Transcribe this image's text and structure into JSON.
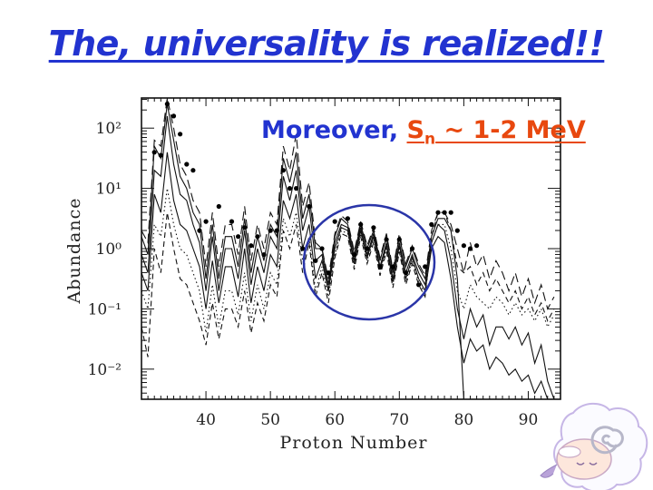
{
  "slide": {
    "title": "The, universality is realized!!",
    "note_prefix": "Moreover, ",
    "note_symbol": "S",
    "note_subscript": "n",
    "note_value": " ~ 1-2 MeV"
  },
  "colors": {
    "title": "#2233d0",
    "highlight": "#e8480f",
    "circle": "#2a35a8",
    "lines": "#111111"
  },
  "icons": {
    "mascot": "sheep-icon"
  },
  "chart_data": {
    "type": "line",
    "xlabel": "Proton Number",
    "ylabel": "Abundance",
    "xlim": [
      30,
      95
    ],
    "ylim": [
      -2.5,
      2.5
    ],
    "y_scale": "log",
    "x_ticks": [
      40,
      50,
      60,
      70,
      80,
      90
    ],
    "x_tick_labels": [
      "40",
      "50",
      "60",
      "70",
      "80",
      "90"
    ],
    "y_ticks": [
      -2,
      -1,
      0,
      1,
      2
    ],
    "y_tick_labels": [
      "10⁻²",
      "10⁻¹",
      "10⁰",
      "10¹",
      "10²"
    ],
    "annotation": "circle around Z = 56-76",
    "solar_points": {
      "x": [
        32,
        33,
        34,
        35,
        36,
        37,
        38,
        39,
        40,
        42,
        44,
        45,
        46,
        47,
        48,
        49,
        50,
        51,
        52,
        53,
        54,
        55,
        56,
        57,
        58,
        59,
        60,
        62,
        63,
        64,
        65,
        66,
        67,
        68,
        69,
        70,
        71,
        72,
        73,
        74,
        75,
        76,
        77,
        78,
        79,
        80,
        81,
        82
      ],
      "y": [
        1.6,
        1.55,
        2.4,
        2.2,
        1.9,
        1.4,
        1.3,
        0.3,
        0.45,
        0.7,
        0.45,
        0.2,
        0.35,
        0.05,
        0.2,
        -0.1,
        0.3,
        0.3,
        1.3,
        1.0,
        1.0,
        0.0,
        0.7,
        -0.2,
        0.0,
        -0.4,
        0.45,
        0.5,
        -0.1,
        0.4,
        0.0,
        0.35,
        -0.3,
        0.15,
        -0.3,
        0.15,
        -0.4,
        0.0,
        -0.6,
        -0.3,
        0.4,
        0.6,
        0.6,
        0.6,
        0.3,
        0.05,
        0.0,
        0.05
      ]
    },
    "series": [
      {
        "style": "solid",
        "x": [
          30,
          31,
          32,
          33,
          34,
          35,
          36,
          37,
          38,
          39,
          40,
          41,
          42,
          43,
          44,
          45,
          46,
          47,
          48,
          49,
          50,
          51,
          52,
          53,
          54,
          55,
          56,
          57,
          58,
          59,
          60,
          61,
          62,
          63,
          64,
          65,
          66,
          67,
          68,
          69,
          70,
          71,
          72,
          73,
          74,
          75,
          76,
          77,
          78,
          79,
          80,
          81,
          82,
          83,
          84,
          85,
          86,
          87,
          88,
          89,
          90,
          91,
          92,
          93,
          94
        ],
        "y": [
          0.2,
          -0.1,
          1.7,
          1.5,
          2.4,
          1.8,
          1.2,
          1.0,
          0.6,
          0.4,
          -0.5,
          0.4,
          -0.5,
          0.2,
          0.2,
          -0.3,
          0.5,
          -0.4,
          0.2,
          -0.2,
          0.4,
          0.2,
          1.5,
          1.1,
          1.6,
          0.5,
          0.9,
          0.0,
          0.0,
          -0.6,
          0.2,
          0.5,
          0.4,
          -0.1,
          0.4,
          0.0,
          0.3,
          -0.2,
          0.2,
          -0.4,
          0.2,
          -0.3,
          0.0,
          -0.3,
          -0.5,
          0.2,
          0.5,
          0.5,
          0.3,
          -0.5,
          -2.5,
          -2.5,
          -2.5,
          -2.5,
          -2.5,
          -2.5,
          -2.5,
          -2.5,
          -2.5,
          -2.5,
          -2.5,
          -2.5,
          -2.5,
          -2.5,
          -2.5
        ]
      },
      {
        "style": "solid",
        "x": [
          30,
          31,
          32,
          33,
          34,
          35,
          36,
          37,
          38,
          39,
          40,
          41,
          42,
          43,
          44,
          45,
          46,
          47,
          48,
          49,
          50,
          51,
          52,
          53,
          54,
          55,
          56,
          57,
          58,
          59,
          60,
          61,
          62,
          63,
          64,
          65,
          66,
          67,
          68,
          69,
          70,
          71,
          72,
          73,
          74,
          75,
          76,
          77,
          78,
          79,
          80,
          81,
          82,
          83,
          84,
          85,
          86,
          87,
          88,
          89,
          90,
          91,
          92,
          93,
          94
        ],
        "y": [
          -0.1,
          -0.4,
          1.3,
          1.2,
          2.2,
          1.4,
          0.9,
          0.8,
          0.4,
          0.1,
          -0.7,
          0.2,
          -0.7,
          0.0,
          0.0,
          -0.5,
          0.3,
          -0.6,
          0.0,
          -0.4,
          0.2,
          0.0,
          1.2,
          0.8,
          1.3,
          0.3,
          0.7,
          -0.2,
          -0.1,
          -0.7,
          0.1,
          0.4,
          0.35,
          -0.2,
          0.35,
          -0.1,
          0.25,
          -0.3,
          0.1,
          -0.5,
          0.1,
          -0.4,
          -0.1,
          -0.4,
          -0.6,
          0.1,
          0.4,
          0.3,
          -0.2,
          -1.0,
          -1.5,
          -1.0,
          -1.3,
          -1.1,
          -1.6,
          -1.3,
          -1.3,
          -1.5,
          -1.3,
          -1.6,
          -1.4,
          -1.9,
          -1.6,
          -2.2,
          -2.5
        ]
      },
      {
        "style": "solid",
        "x": [
          30,
          31,
          32,
          33,
          34,
          35,
          36,
          37,
          38,
          39,
          40,
          41,
          42,
          43,
          44,
          45,
          46,
          47,
          48,
          49,
          50,
          51,
          52,
          53,
          54,
          55,
          56,
          57,
          58,
          59,
          60,
          61,
          62,
          63,
          64,
          65,
          66,
          67,
          68,
          69,
          70,
          71,
          72,
          73,
          74,
          75,
          76,
          77,
          78,
          79,
          80,
          81,
          82,
          83,
          84,
          85,
          86,
          87,
          88,
          89,
          90,
          91,
          92,
          93,
          94
        ],
        "y": [
          -0.4,
          -0.7,
          0.9,
          0.6,
          1.6,
          0.8,
          0.4,
          0.3,
          0.0,
          -0.3,
          -1.0,
          -0.2,
          -0.9,
          -0.3,
          -0.3,
          -0.8,
          0.0,
          -0.9,
          -0.3,
          -0.7,
          -0.1,
          -0.3,
          0.8,
          0.5,
          0.9,
          0.0,
          0.4,
          -0.5,
          -0.2,
          -0.7,
          0.0,
          0.35,
          0.3,
          -0.25,
          0.3,
          -0.15,
          0.2,
          -0.35,
          0.05,
          -0.55,
          0.05,
          -0.5,
          -0.15,
          -0.5,
          -0.7,
          0.0,
          0.2,
          0.1,
          -0.5,
          -1.3,
          -1.9,
          -1.5,
          -1.7,
          -1.6,
          -2.0,
          -1.8,
          -1.9,
          -2.1,
          -2.0,
          -2.2,
          -2.1,
          -2.4,
          -2.2,
          -2.5,
          -2.5
        ]
      },
      {
        "style": "dotted",
        "x": [
          30,
          31,
          32,
          33,
          34,
          35,
          36,
          37,
          38,
          39,
          40,
          41,
          42,
          43,
          44,
          45,
          46,
          47,
          48,
          49,
          50,
          51,
          52,
          53,
          54,
          55,
          56,
          57,
          58,
          59,
          60,
          61,
          62,
          63,
          64,
          65,
          66,
          67,
          68,
          69,
          70,
          71,
          72,
          73,
          74,
          75,
          76,
          77,
          78,
          79,
          80,
          81,
          82,
          83,
          84,
          85,
          86,
          87,
          88,
          89,
          90,
          91,
          92,
          93,
          94
        ],
        "y": [
          -0.7,
          -1.0,
          0.4,
          0.2,
          1.0,
          0.4,
          0.0,
          -0.1,
          -0.4,
          -0.7,
          -1.4,
          -0.6,
          -1.3,
          -0.7,
          -0.7,
          -1.1,
          -0.4,
          -1.2,
          -0.6,
          -1.0,
          -0.4,
          -0.6,
          0.5,
          0.2,
          0.6,
          -0.2,
          0.2,
          -0.7,
          -0.3,
          -0.8,
          -0.1,
          0.3,
          0.25,
          -0.3,
          0.25,
          -0.2,
          0.15,
          -0.4,
          0.0,
          -0.6,
          0.0,
          -0.55,
          -0.2,
          -0.55,
          -0.75,
          0.1,
          0.4,
          0.4,
          0.0,
          -0.7,
          -1.0,
          -0.6,
          -0.8,
          -0.9,
          -1.0,
          -0.8,
          -0.9,
          -1.1,
          -0.9,
          -1.1,
          -1.0,
          -1.2,
          -1.0,
          -1.3,
          -1.1
        ]
      },
      {
        "style": "dashed",
        "x": [
          30,
          31,
          32,
          33,
          34,
          35,
          36,
          37,
          38,
          39,
          40,
          41,
          42,
          43,
          44,
          45,
          46,
          47,
          48,
          49,
          50,
          51,
          52,
          53,
          54,
          55,
          56,
          57,
          58,
          59,
          60,
          61,
          62,
          63,
          64,
          65,
          66,
          67,
          68,
          69,
          70,
          71,
          72,
          73,
          74,
          75,
          76,
          77,
          78,
          79,
          80,
          81,
          82,
          83,
          84,
          85,
          86,
          87,
          88,
          89,
          90,
          91,
          92,
          93,
          94
        ],
        "y": [
          -1.3,
          -1.8,
          0.0,
          -0.4,
          0.6,
          0.0,
          -0.5,
          -0.6,
          -0.9,
          -1.2,
          -1.6,
          -0.9,
          -1.5,
          -1.0,
          -1.0,
          -1.3,
          -0.7,
          -1.4,
          -0.9,
          -1.2,
          -0.6,
          -0.8,
          0.3,
          0.0,
          0.4,
          -0.4,
          0.1,
          -0.8,
          -0.4,
          -0.9,
          -0.15,
          0.25,
          0.2,
          -0.35,
          0.2,
          -0.25,
          0.1,
          -0.45,
          -0.05,
          -0.65,
          -0.05,
          -0.6,
          -0.25,
          -0.6,
          -0.8,
          0.2,
          0.6,
          0.6,
          0.3,
          -0.3,
          -0.4,
          -0.3,
          -0.6,
          -0.4,
          -0.7,
          -0.5,
          -0.7,
          -0.9,
          -0.7,
          -1.0,
          -0.8,
          -1.1,
          -0.9,
          -1.2,
          -1.0
        ]
      },
      {
        "style": "longdash",
        "x": [
          30,
          31,
          32,
          33,
          34,
          35,
          36,
          37,
          38,
          39,
          40,
          41,
          42,
          43,
          44,
          45,
          46,
          47,
          48,
          49,
          50,
          51,
          52,
          53,
          54,
          55,
          56,
          57,
          58,
          59,
          60,
          61,
          62,
          63,
          64,
          65,
          66,
          67,
          68,
          69,
          70,
          71,
          72,
          73,
          74,
          75,
          76,
          77,
          78,
          79,
          80,
          81,
          82,
          83,
          84,
          85,
          86,
          87,
          88,
          89,
          90,
          91,
          92,
          93,
          94
        ],
        "y": [
          0.3,
          0.1,
          1.8,
          1.7,
          2.5,
          2.0,
          1.4,
          1.2,
          0.8,
          0.6,
          -0.3,
          0.6,
          -0.3,
          0.4,
          0.4,
          -0.1,
          0.7,
          -0.2,
          0.4,
          0.0,
          0.6,
          0.4,
          1.7,
          1.3,
          1.9,
          0.7,
          1.1,
          0.1,
          0.0,
          -0.5,
          0.25,
          0.55,
          0.45,
          -0.05,
          0.45,
          0.05,
          0.35,
          -0.15,
          0.25,
          -0.35,
          0.25,
          -0.25,
          0.05,
          -0.25,
          -0.45,
          0.3,
          0.6,
          0.6,
          0.4,
          0.0,
          -0.4,
          0.1,
          -0.3,
          -0.1,
          -0.5,
          -0.2,
          -0.4,
          -0.7,
          -0.4,
          -0.8,
          -0.5,
          -0.9,
          -0.6,
          -1.0,
          -0.8
        ]
      }
    ]
  }
}
